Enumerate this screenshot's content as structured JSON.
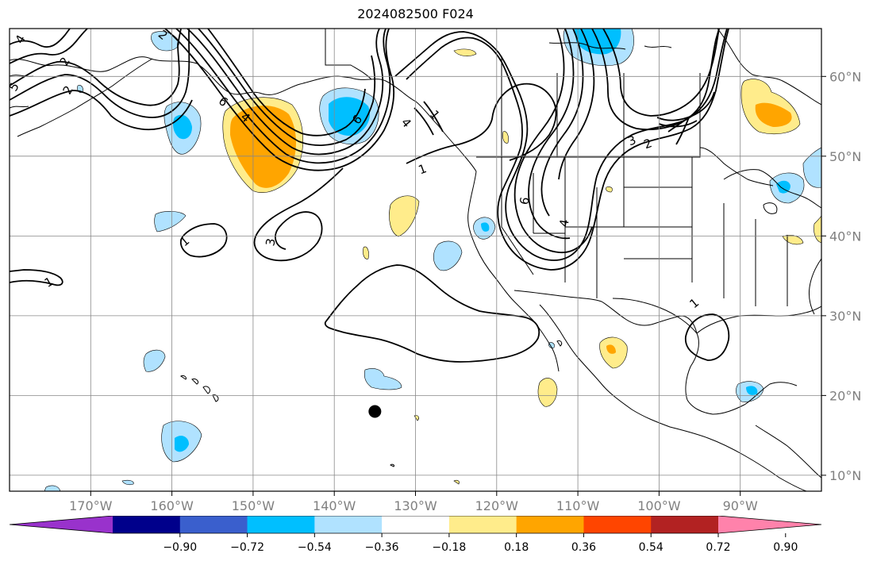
{
  "title": "2024082500 F024",
  "map": {
    "lon_range": [
      -180,
      -80
    ],
    "lat_range": [
      8,
      66
    ],
    "lon_ticks": [
      "170°W",
      "160°W",
      "150°W",
      "140°W",
      "130°W",
      "120°W",
      "110°W",
      "100°W",
      "90°W"
    ],
    "lat_ticks": [
      "10°N",
      "20°N",
      "30°N",
      "40°N",
      "50°N",
      "60°N"
    ],
    "grid": true,
    "contour_labels": [
      "4",
      "2",
      "2",
      "5",
      "2",
      "6",
      "4",
      "1",
      "1",
      "3",
      "1",
      "1",
      "6",
      "4",
      "3",
      "2",
      "6",
      "4",
      "1"
    ],
    "marker": {
      "type": "black-dot",
      "lon": -135,
      "lat": 18
    }
  },
  "colorbar": {
    "labels": [
      "−0.90",
      "−0.72",
      "−0.54",
      "−0.36",
      "−0.18",
      "0.18",
      "0.36",
      "0.54",
      "0.72",
      "0.90"
    ],
    "colors": [
      "#9932cc",
      "#00008b",
      "#3a5fcd",
      "#00bfff",
      "#b0e2ff",
      "#ffffff",
      "#ffec8b",
      "#ffa500",
      "#ff4500",
      "#b22222",
      "#ff82ab"
    ]
  },
  "colors": {
    "light_blue": "#b0e2ff",
    "blue": "#00bfff",
    "light_yellow": "#ffec8b",
    "orange": "#ffa500"
  }
}
